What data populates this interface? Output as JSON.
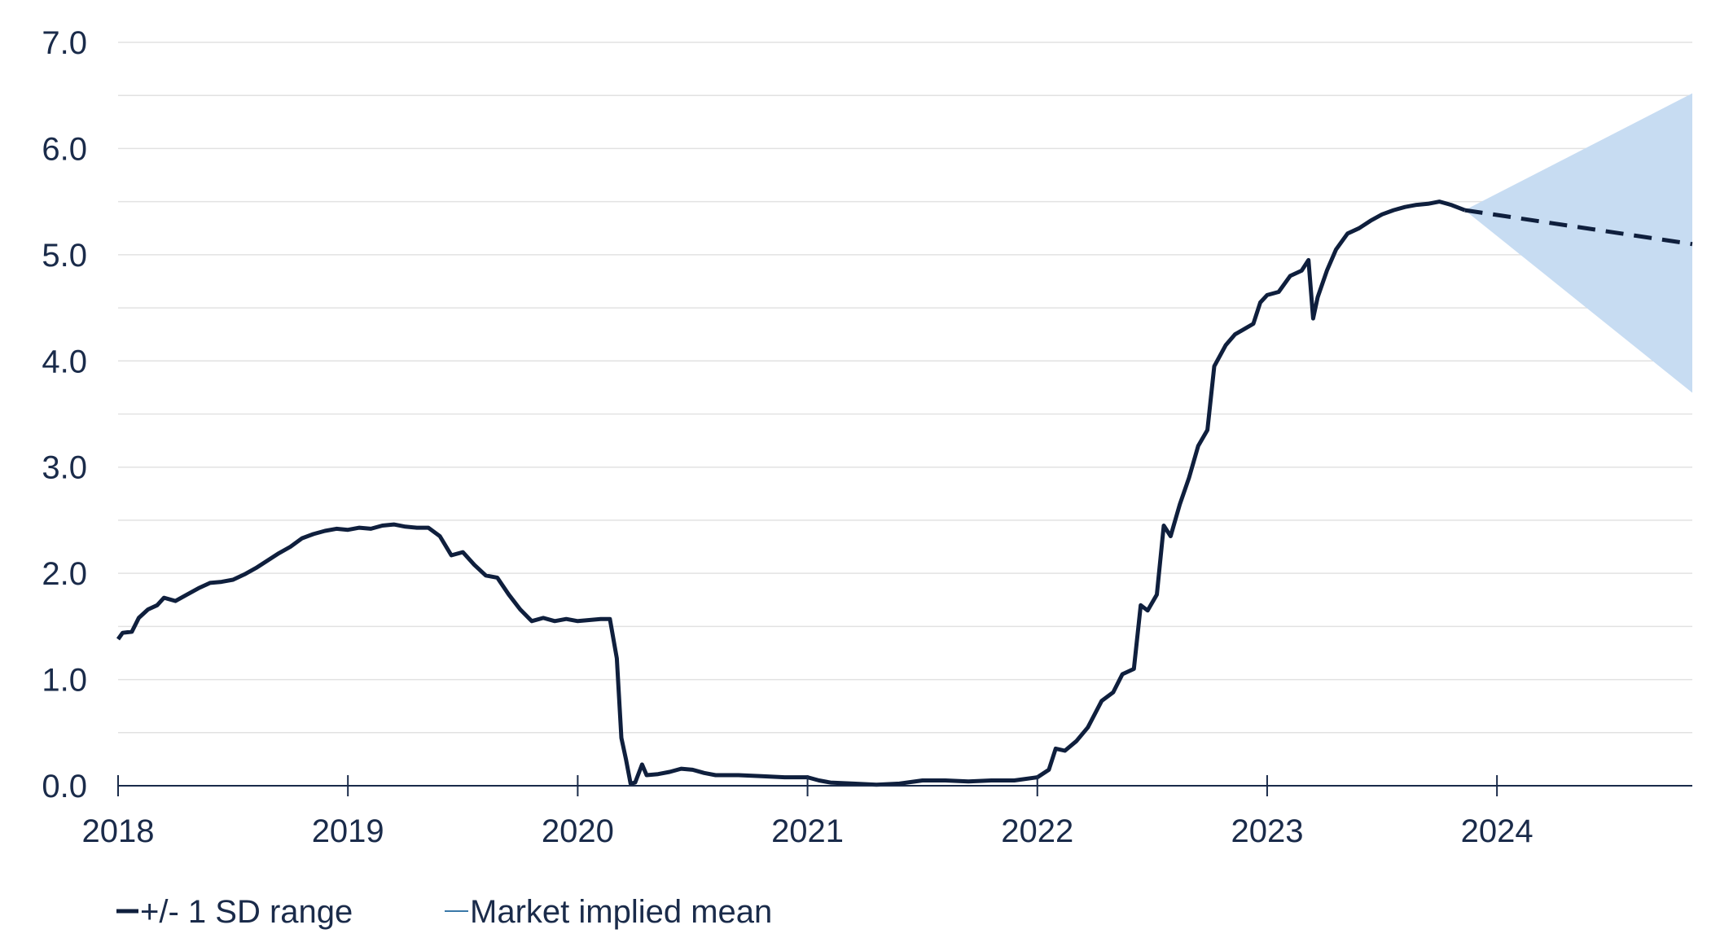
{
  "chart_data": {
    "type": "line",
    "title": "",
    "xlabel": "",
    "ylabel": "",
    "x_ticks": [
      "2018",
      "2019",
      "2020",
      "2021",
      "2022",
      "2023",
      "2024"
    ],
    "x_range": [
      2018.0,
      2024.85
    ],
    "y_ticks": [
      "0.0",
      "1.0",
      "2.0",
      "3.0",
      "4.0",
      "5.0",
      "6.0",
      "7.0"
    ],
    "ylim": [
      0,
      7
    ],
    "grid": "horizontal",
    "legend_position": "bottom-left",
    "series": [
      {
        "name": "Market implied mean",
        "style": "solid",
        "color": "#0f1f3d",
        "points": [
          [
            2018.0,
            1.38
          ],
          [
            2018.02,
            1.44
          ],
          [
            2018.06,
            1.45
          ],
          [
            2018.09,
            1.58
          ],
          [
            2018.13,
            1.66
          ],
          [
            2018.17,
            1.7
          ],
          [
            2018.2,
            1.77
          ],
          [
            2018.25,
            1.74
          ],
          [
            2018.3,
            1.8
          ],
          [
            2018.35,
            1.86
          ],
          [
            2018.4,
            1.91
          ],
          [
            2018.45,
            1.92
          ],
          [
            2018.5,
            1.94
          ],
          [
            2018.55,
            1.99
          ],
          [
            2018.6,
            2.05
          ],
          [
            2018.65,
            2.12
          ],
          [
            2018.7,
            2.19
          ],
          [
            2018.75,
            2.25
          ],
          [
            2018.8,
            2.33
          ],
          [
            2018.85,
            2.37
          ],
          [
            2018.9,
            2.4
          ],
          [
            2018.95,
            2.42
          ],
          [
            2019.0,
            2.41
          ],
          [
            2019.05,
            2.43
          ],
          [
            2019.1,
            2.42
          ],
          [
            2019.15,
            2.45
          ],
          [
            2019.2,
            2.46
          ],
          [
            2019.25,
            2.44
          ],
          [
            2019.3,
            2.43
          ],
          [
            2019.35,
            2.43
          ],
          [
            2019.4,
            2.35
          ],
          [
            2019.45,
            2.17
          ],
          [
            2019.5,
            2.2
          ],
          [
            2019.55,
            2.08
          ],
          [
            2019.6,
            1.98
          ],
          [
            2019.65,
            1.96
          ],
          [
            2019.7,
            1.8
          ],
          [
            2019.75,
            1.66
          ],
          [
            2019.8,
            1.55
          ],
          [
            2019.85,
            1.58
          ],
          [
            2019.9,
            1.55
          ],
          [
            2019.95,
            1.57
          ],
          [
            2020.0,
            1.55
          ],
          [
            2020.05,
            1.56
          ],
          [
            2020.1,
            1.57
          ],
          [
            2020.14,
            1.57
          ],
          [
            2020.17,
            1.2
          ],
          [
            2020.19,
            0.45
          ],
          [
            2020.21,
            0.25
          ],
          [
            2020.23,
            0.02
          ],
          [
            2020.25,
            0.03
          ],
          [
            2020.28,
            0.2
          ],
          [
            2020.3,
            0.1
          ],
          [
            2020.35,
            0.11
          ],
          [
            2020.4,
            0.13
          ],
          [
            2020.45,
            0.16
          ],
          [
            2020.5,
            0.15
          ],
          [
            2020.55,
            0.12
          ],
          [
            2020.6,
            0.1
          ],
          [
            2020.7,
            0.1
          ],
          [
            2020.8,
            0.09
          ],
          [
            2020.9,
            0.08
          ],
          [
            2021.0,
            0.08
          ],
          [
            2021.05,
            0.05
          ],
          [
            2021.1,
            0.03
          ],
          [
            2021.2,
            0.02
          ],
          [
            2021.3,
            0.01
          ],
          [
            2021.4,
            0.02
          ],
          [
            2021.5,
            0.05
          ],
          [
            2021.6,
            0.05
          ],
          [
            2021.7,
            0.04
          ],
          [
            2021.8,
            0.05
          ],
          [
            2021.9,
            0.05
          ],
          [
            2022.0,
            0.08
          ],
          [
            2022.05,
            0.15
          ],
          [
            2022.08,
            0.35
          ],
          [
            2022.12,
            0.33
          ],
          [
            2022.17,
            0.42
          ],
          [
            2022.22,
            0.55
          ],
          [
            2022.28,
            0.8
          ],
          [
            2022.33,
            0.88
          ],
          [
            2022.37,
            1.05
          ],
          [
            2022.42,
            1.1
          ],
          [
            2022.45,
            1.7
          ],
          [
            2022.48,
            1.65
          ],
          [
            2022.52,
            1.8
          ],
          [
            2022.55,
            2.45
          ],
          [
            2022.58,
            2.35
          ],
          [
            2022.62,
            2.65
          ],
          [
            2022.66,
            2.9
          ],
          [
            2022.7,
            3.2
          ],
          [
            2022.74,
            3.35
          ],
          [
            2022.77,
            3.95
          ],
          [
            2022.82,
            4.15
          ],
          [
            2022.86,
            4.25
          ],
          [
            2022.9,
            4.3
          ],
          [
            2022.94,
            4.35
          ],
          [
            2022.97,
            4.55
          ],
          [
            2023.0,
            4.62
          ],
          [
            2023.05,
            4.65
          ],
          [
            2023.1,
            4.8
          ],
          [
            2023.15,
            4.85
          ],
          [
            2023.18,
            4.95
          ],
          [
            2023.2,
            4.4
          ],
          [
            2023.22,
            4.6
          ],
          [
            2023.26,
            4.85
          ],
          [
            2023.3,
            5.05
          ],
          [
            2023.35,
            5.2
          ],
          [
            2023.4,
            5.25
          ],
          [
            2023.45,
            5.32
          ],
          [
            2023.5,
            5.38
          ],
          [
            2023.55,
            5.42
          ],
          [
            2023.6,
            5.45
          ],
          [
            2023.65,
            5.47
          ],
          [
            2023.7,
            5.48
          ],
          [
            2023.75,
            5.5
          ],
          [
            2023.8,
            5.47
          ],
          [
            2023.86,
            5.42
          ]
        ]
      },
      {
        "name": "+/- 1 SD range",
        "style": "dashed",
        "color": "#0f1f3d",
        "points": [
          [
            2023.86,
            5.42
          ],
          [
            2024.85,
            5.1
          ]
        ]
      }
    ],
    "band": {
      "color": "#c7dcf2",
      "upper": [
        [
          2023.86,
          5.42
        ],
        [
          2024.85,
          6.52
        ]
      ],
      "lower": [
        [
          2023.86,
          5.42
        ],
        [
          2024.85,
          3.7
        ]
      ]
    }
  },
  "legend": {
    "items": [
      {
        "label": "+/- 1 SD range",
        "color": "#0f1f3d"
      },
      {
        "label": "Market implied mean",
        "color": "#3a78a8"
      }
    ]
  }
}
